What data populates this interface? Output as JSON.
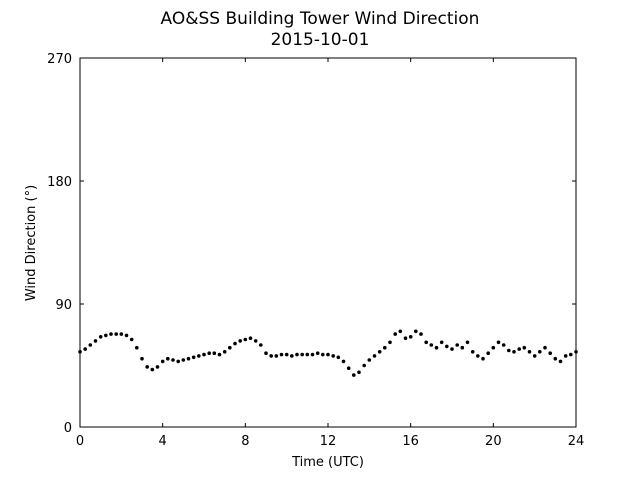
{
  "chart_data": {
    "type": "scatter",
    "title": "AO&SS Building Tower Wind Direction",
    "subtitle": "2015-10-01",
    "xlabel": "Time (UTC)",
    "ylabel": "Wind Direction (°)",
    "xlim": [
      0,
      24
    ],
    "ylim": [
      0,
      270
    ],
    "xticks": [
      0,
      4,
      8,
      12,
      16,
      20,
      24
    ],
    "yticks": [
      0,
      90,
      180,
      270
    ],
    "grid": false,
    "marker_color": "#000000",
    "series": [
      {
        "x": [
          0.0,
          0.25,
          0.5,
          0.75,
          1.0,
          1.25,
          1.5,
          1.75,
          2.0,
          2.25,
          2.5,
          2.75,
          3.0,
          3.25,
          3.5,
          3.75,
          4.0,
          4.25,
          4.5,
          4.75,
          5.0,
          5.25,
          5.5,
          5.75,
          6.0,
          6.25,
          6.5,
          6.75,
          7.0,
          7.25,
          7.5,
          7.75,
          8.0,
          8.25,
          8.5,
          8.75,
          9.0,
          9.25,
          9.5,
          9.75,
          10.0,
          10.25,
          10.5,
          10.75,
          11.0,
          11.25,
          11.5,
          11.75,
          12.0,
          12.25,
          12.5,
          12.75,
          13.0,
          13.25,
          13.5,
          13.75,
          14.0,
          14.25,
          14.5,
          14.75,
          15.0,
          15.25,
          15.5,
          15.75,
          16.0,
          16.25,
          16.5,
          16.75,
          17.0,
          17.25,
          17.5,
          17.75,
          18.0,
          18.25,
          18.5,
          18.75,
          19.0,
          19.25,
          19.5,
          19.75,
          20.0,
          20.25,
          20.5,
          20.75,
          21.0,
          21.25,
          21.5,
          21.75,
          22.0,
          22.25,
          22.5,
          22.75,
          23.0,
          23.25,
          23.5,
          23.75,
          24.0
        ],
        "y": [
          55,
          57,
          60,
          63,
          66,
          67,
          68,
          68,
          68,
          67,
          64,
          58,
          50,
          44,
          42,
          44,
          48,
          50,
          49,
          48,
          49,
          50,
          51,
          52,
          53,
          54,
          54,
          53,
          55,
          58,
          61,
          63,
          64,
          65,
          63,
          60,
          54,
          52,
          52,
          53,
          53,
          52,
          53,
          53,
          53,
          53,
          54,
          53,
          53,
          52,
          51,
          48,
          43,
          38,
          40,
          45,
          49,
          52,
          55,
          58,
          62,
          68,
          70,
          65,
          66,
          70,
          68,
          62,
          60,
          58,
          62,
          59,
          57,
          60,
          58,
          62,
          55,
          52,
          50,
          54,
          58,
          62,
          60,
          56,
          55,
          57,
          58,
          55,
          52,
          55,
          58,
          54,
          50,
          48,
          52,
          53,
          55
        ]
      }
    ]
  }
}
